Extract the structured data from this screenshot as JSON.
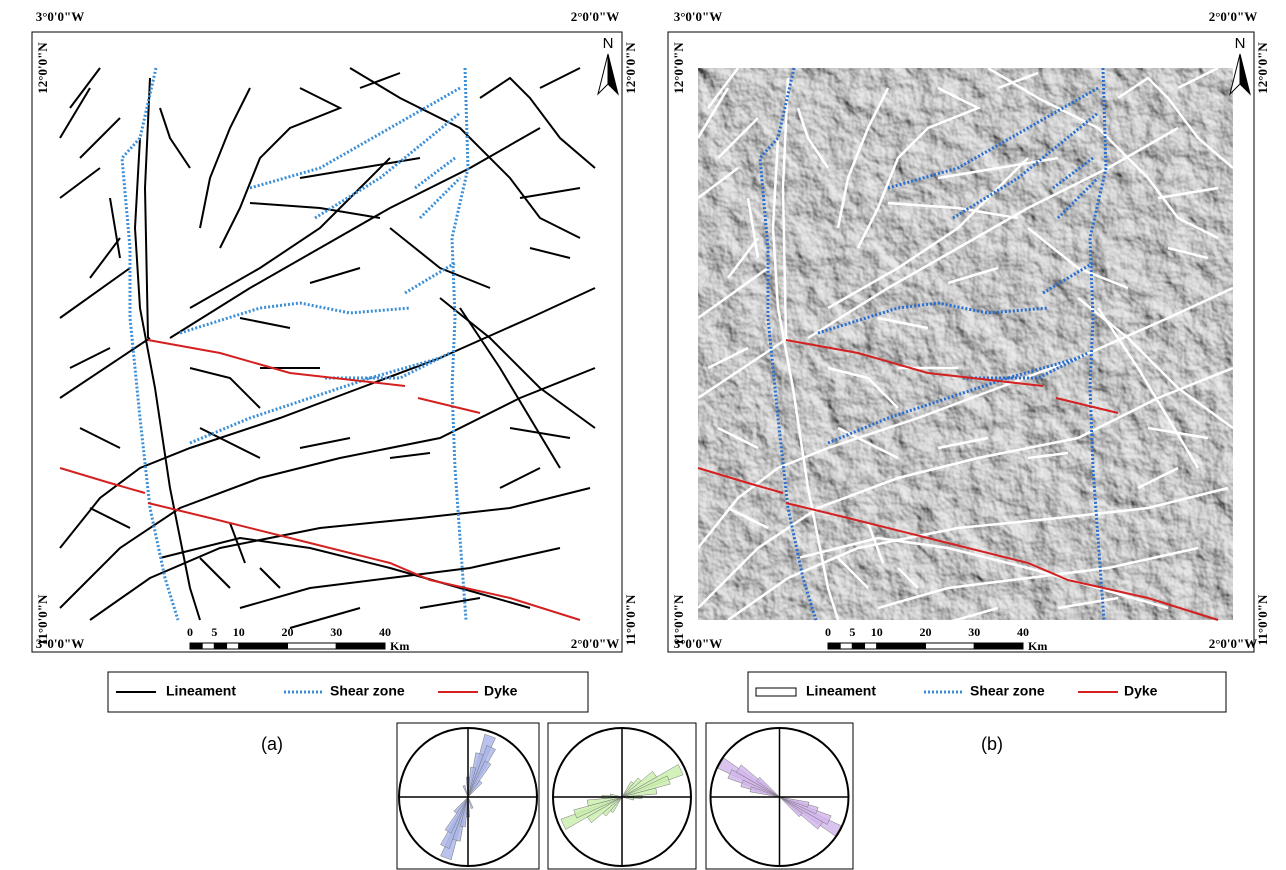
{
  "panels": [
    {
      "label": "(a)",
      "north": "N",
      "coords": {
        "top_left": "3°0'0\"W",
        "top_right": "2°0'0\"W",
        "bottom_left": "3°0'0\"W",
        "bottom_right": "2°0'0\"W",
        "left_top": "12°0'0\"N",
        "left_bottom": "11°0'0\"N",
        "right_top": "12°0'0\"N",
        "right_bottom": "11°0'0\"N"
      },
      "scale": {
        "ticks": [
          0,
          5,
          10,
          20,
          30,
          40
        ],
        "unit": "Km"
      },
      "legend": [
        "Lineament",
        "Shear zone",
        "Dyke"
      ]
    },
    {
      "label": "(b)",
      "north": "N",
      "coords": {
        "top_left": "3°0'0\"W",
        "top_right": "2°0'0\"W",
        "bottom_left": "3°0'0\"W",
        "bottom_right": "2°0'0\"W",
        "left_top": "12°0'0\"N",
        "left_bottom": "11°0'0\"N",
        "right_top": "12°0'0\"N",
        "right_bottom": "11°0'0\"N"
      },
      "scale": {
        "ticks": [
          0,
          5,
          10,
          20,
          30,
          40
        ],
        "unit": "Km"
      },
      "legend": [
        "Lineament",
        "Shear zone",
        "Dyke"
      ]
    }
  ]
}
